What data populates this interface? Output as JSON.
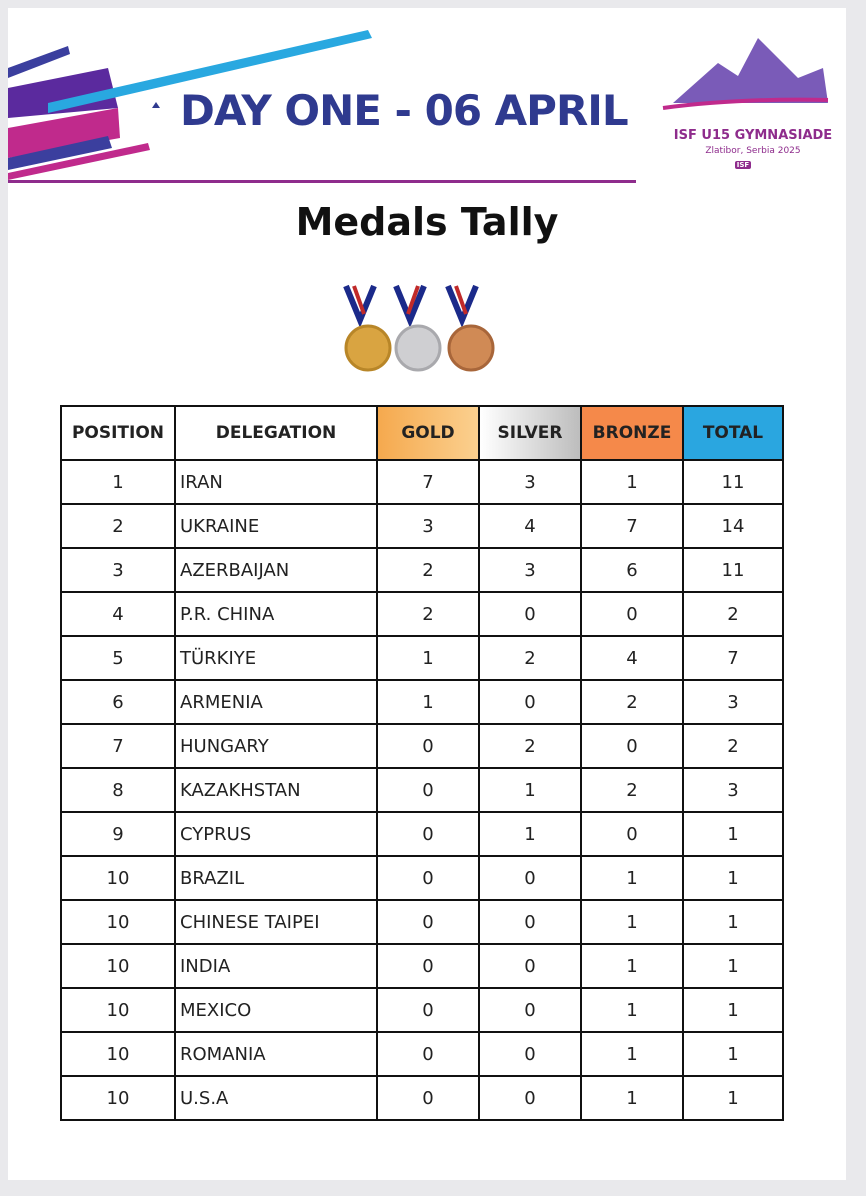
{
  "header": {
    "title": "DAY ONE - 06 APRIL",
    "logo_title": "ISF U15 GYMNASIADE",
    "logo_subtitle": "Zlatibor, Serbia 2025",
    "logo_badge": "ISF"
  },
  "heading": "Medals Tally",
  "table": {
    "columns": [
      "POSITION",
      "DELEGATION",
      "GOLD",
      "SILVER",
      "BRONZE",
      "TOTAL"
    ],
    "rows": [
      [
        1,
        "IRAN",
        7,
        3,
        1,
        11
      ],
      [
        2,
        "UKRAINE",
        3,
        4,
        7,
        14
      ],
      [
        3,
        "AZERBAIJAN",
        2,
        3,
        6,
        11
      ],
      [
        4,
        "P.R. CHINA",
        2,
        0,
        0,
        2
      ],
      [
        5,
        "TÜRKIYE",
        1,
        2,
        4,
        7
      ],
      [
        6,
        "ARMENIA",
        1,
        0,
        2,
        3
      ],
      [
        7,
        "HUNGARY",
        0,
        2,
        0,
        2
      ],
      [
        8,
        "KAZAKHSTAN",
        0,
        1,
        2,
        3
      ],
      [
        9,
        "CYPRUS",
        0,
        1,
        0,
        1
      ],
      [
        10,
        "BRAZIL",
        0,
        0,
        1,
        1
      ],
      [
        10,
        "CHINESE TAIPEI",
        0,
        0,
        1,
        1
      ],
      [
        10,
        "INDIA",
        0,
        0,
        1,
        1
      ],
      [
        10,
        "MEXICO",
        0,
        0,
        1,
        1
      ],
      [
        10,
        "ROMANIA",
        0,
        0,
        1,
        1
      ],
      [
        10,
        "U.S.A",
        0,
        0,
        1,
        1
      ]
    ]
  }
}
